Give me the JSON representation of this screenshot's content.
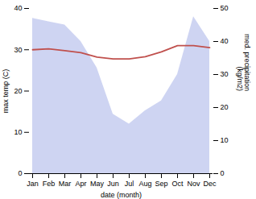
{
  "chart_data": {
    "type": "line",
    "categories": [
      "Jan",
      "Feb",
      "Mar",
      "Apr",
      "May",
      "Jun",
      "Jul",
      "Aug",
      "Sep",
      "Oct",
      "Nov",
      "Dec"
    ],
    "xlabel": "date (month)",
    "ylabel": "max temp (C)",
    "y2label": "med. precipitation\n(kg/m2)",
    "ylim": [
      0,
      40
    ],
    "yticks": [
      0,
      10,
      20,
      30,
      40
    ],
    "y2lim": [
      0,
      50
    ],
    "y2ticks": [
      0,
      10,
      20,
      30,
      40,
      50
    ],
    "series": [
      {
        "type": "area",
        "axis": "y2",
        "color": "#c5cdf0",
        "values": [
          47.0,
          46.0,
          45.0,
          40.0,
          32.0,
          18.0,
          15.0,
          19.0,
          22.0,
          30.0,
          47.5,
          40.0
        ]
      },
      {
        "type": "line",
        "color": "#c0504d",
        "values": [
          30.0,
          30.2,
          29.8,
          29.3,
          28.2,
          27.8,
          27.8,
          28.3,
          29.5,
          31.0,
          31.0,
          30.5
        ]
      }
    ]
  }
}
